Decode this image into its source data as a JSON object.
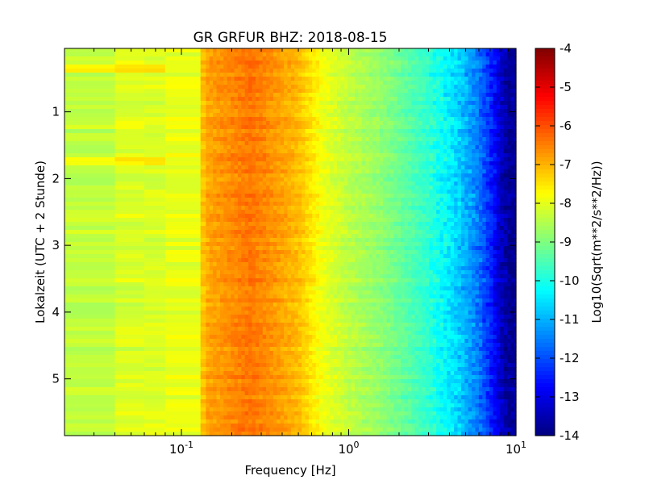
{
  "chart_data": {
    "type": "heatmap",
    "title": "GR GRFUR BHZ: 2018-08-15",
    "xlabel": "Frequency [Hz]",
    "ylabel": "Lokalzeit (UTC + 2 Stunde)",
    "xscale": "log",
    "xlim": [
      0.02,
      10
    ],
    "ylim": [
      5.85,
      0.05
    ],
    "x_ticks": [
      {
        "value": 0.1,
        "base": "10",
        "exp": "-1"
      },
      {
        "value": 1,
        "base": "10",
        "exp": "0"
      },
      {
        "value": 10,
        "base": "10",
        "exp": "1"
      }
    ],
    "y_ticks": [
      {
        "value": 1,
        "label": "1"
      },
      {
        "value": 2,
        "label": "2"
      },
      {
        "value": 3,
        "label": "3"
      },
      {
        "value": 4,
        "label": "4"
      },
      {
        "value": 5,
        "label": "5"
      }
    ],
    "colorbar": {
      "label": "Log10(Sqrt(m**2/s**2/Hz))",
      "colormap": "jet",
      "range": [
        -14,
        -4
      ],
      "ticks": [
        "-4",
        "-5",
        "-6",
        "-7",
        "-8",
        "-9",
        "-10",
        "-11",
        "-12",
        "-13",
        "-14"
      ]
    },
    "spectrum_profile": {
      "freq_hz": [
        0.02,
        0.04,
        0.06,
        0.08,
        0.12,
        0.14,
        0.2,
        0.26,
        0.35,
        0.5,
        0.7,
        1.0,
        1.5,
        2.0,
        3.0,
        4.0,
        5.0,
        6.0,
        7.0,
        8.0,
        9.0,
        10.0
      ],
      "log10_amplitude": [
        -8.6,
        -8.1,
        -8.1,
        -8.1,
        -7.9,
        -6.9,
        -6.6,
        -6.4,
        -6.7,
        -7.1,
        -7.9,
        -8.4,
        -8.8,
        -9.2,
        -9.8,
        -10.4,
        -11.0,
        -11.6,
        -12.4,
        -13.2,
        -13.8,
        -13.8
      ]
    },
    "grid": false,
    "legend": "none"
  }
}
